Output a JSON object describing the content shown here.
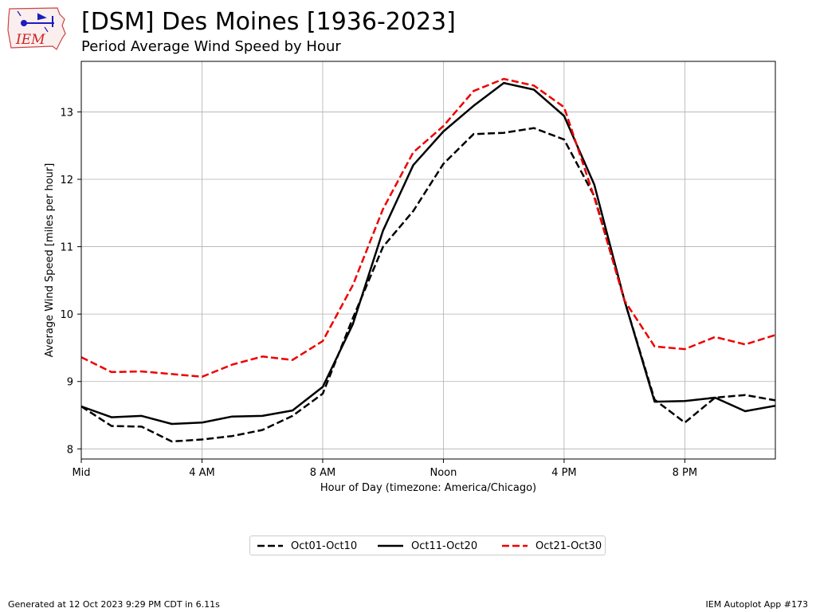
{
  "header": {
    "logo_text": "IEM",
    "title": "[DSM] Des Moines [1936-2023]",
    "subtitle": "Period Average Wind Speed by Hour"
  },
  "footer": {
    "generated": "Generated at 12 Oct 2023 9:29 PM CDT in 6.11s",
    "app": "IEM Autoplot App #173"
  },
  "colors": {
    "black": "#000000",
    "red": "#ee0000",
    "grid": "#b0b0b0"
  },
  "chart_data": {
    "type": "line",
    "xlabel": "Hour of Day (timezone: America/Chicago)",
    "ylabel": "Average Wind Speed [miles per hour]",
    "xlim": [
      0,
      23
    ],
    "ylim": [
      7.85,
      13.75
    ],
    "x_ticks": [
      0,
      4,
      8,
      12,
      16,
      20
    ],
    "x_tick_labels": [
      "Mid",
      "4 AM",
      "8 AM",
      "Noon",
      "4 PM",
      "8 PM"
    ],
    "y_ticks": [
      8,
      9,
      10,
      11,
      12,
      13
    ],
    "grid": true,
    "legend_position": "bottom-center",
    "x": [
      0,
      1,
      2,
      3,
      4,
      5,
      6,
      7,
      8,
      9,
      10,
      11,
      12,
      13,
      14,
      15,
      16,
      17,
      18,
      19,
      20,
      21,
      22,
      23
    ],
    "series": [
      {
        "name": "Oct01-Oct10",
        "color": "#000000",
        "dash": "dashed",
        "values": [
          8.63,
          8.34,
          8.33,
          8.11,
          8.14,
          8.19,
          8.28,
          8.49,
          8.82,
          9.94,
          11.0,
          11.53,
          12.23,
          12.67,
          12.69,
          12.76,
          12.59,
          11.75,
          10.2,
          8.73,
          8.39,
          8.76,
          8.8,
          8.72
        ]
      },
      {
        "name": "Oct11-Oct20",
        "color": "#000000",
        "dash": "solid",
        "values": [
          8.63,
          8.47,
          8.49,
          8.37,
          8.39,
          8.48,
          8.49,
          8.57,
          8.92,
          9.85,
          11.24,
          12.21,
          12.71,
          13.09,
          13.43,
          13.33,
          12.94,
          11.92,
          10.2,
          8.7,
          8.71,
          8.76,
          8.56,
          8.64
        ]
      },
      {
        "name": "Oct21-Oct30",
        "color": "#ee0000",
        "dash": "dashed",
        "values": [
          9.36,
          9.14,
          9.15,
          9.11,
          9.07,
          9.25,
          9.37,
          9.32,
          9.6,
          10.43,
          11.56,
          12.4,
          12.79,
          13.31,
          13.49,
          13.39,
          13.07,
          11.73,
          10.2,
          9.52,
          9.48,
          9.66,
          9.55,
          9.69
        ]
      }
    ]
  }
}
